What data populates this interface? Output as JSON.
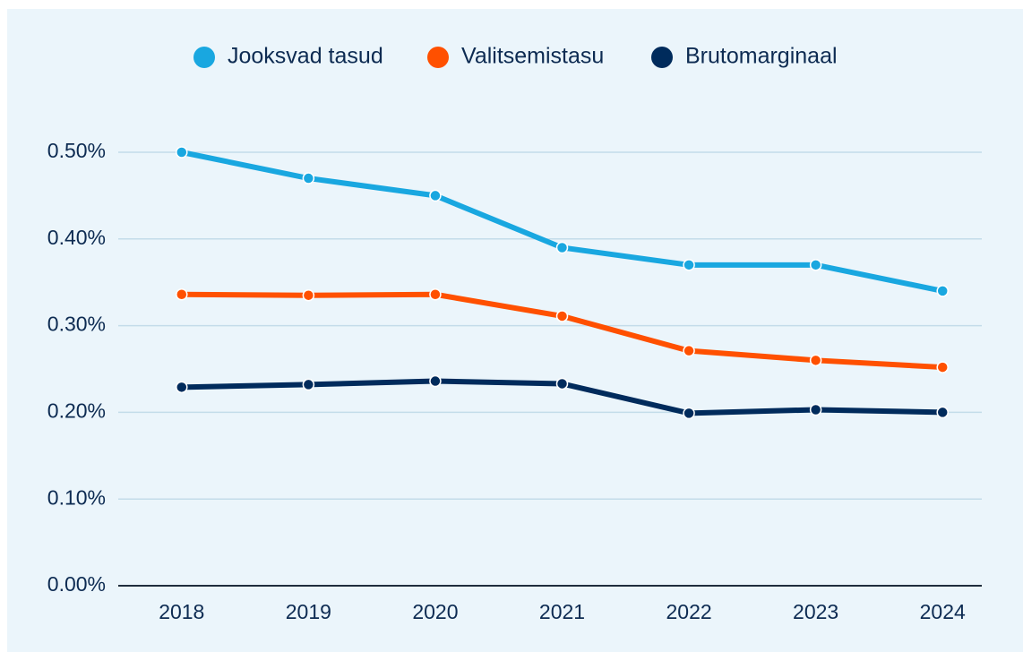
{
  "chart_data": {
    "type": "line",
    "categories": [
      "2018",
      "2019",
      "2020",
      "2021",
      "2022",
      "2023",
      "2024"
    ],
    "series": [
      {
        "name": "Jooksvad tasud",
        "color": "#19a7e0",
        "values": [
          0.5,
          0.47,
          0.45,
          0.39,
          0.37,
          0.37,
          0.34
        ]
      },
      {
        "name": "Valitsemistasu",
        "color": "#ff5000",
        "values": [
          0.336,
          0.335,
          0.336,
          0.311,
          0.271,
          0.26,
          0.252
        ]
      },
      {
        "name": "Brutomarginaal",
        "color": "#002b5c",
        "values": [
          0.229,
          0.232,
          0.236,
          0.233,
          0.199,
          0.203,
          0.2
        ]
      }
    ],
    "ylim": [
      0,
      0.5
    ],
    "yticks": [
      {
        "value": 0,
        "label": "0.00%"
      },
      {
        "value": 0.1,
        "label": "0.10%"
      },
      {
        "value": 0.2,
        "label": "0.20%"
      },
      {
        "value": 0.3,
        "label": "0.30%"
      },
      {
        "value": 0.4,
        "label": "0.40%"
      },
      {
        "value": 0.5,
        "label": "0.50%"
      }
    ],
    "grid": true,
    "legend": "top"
  }
}
